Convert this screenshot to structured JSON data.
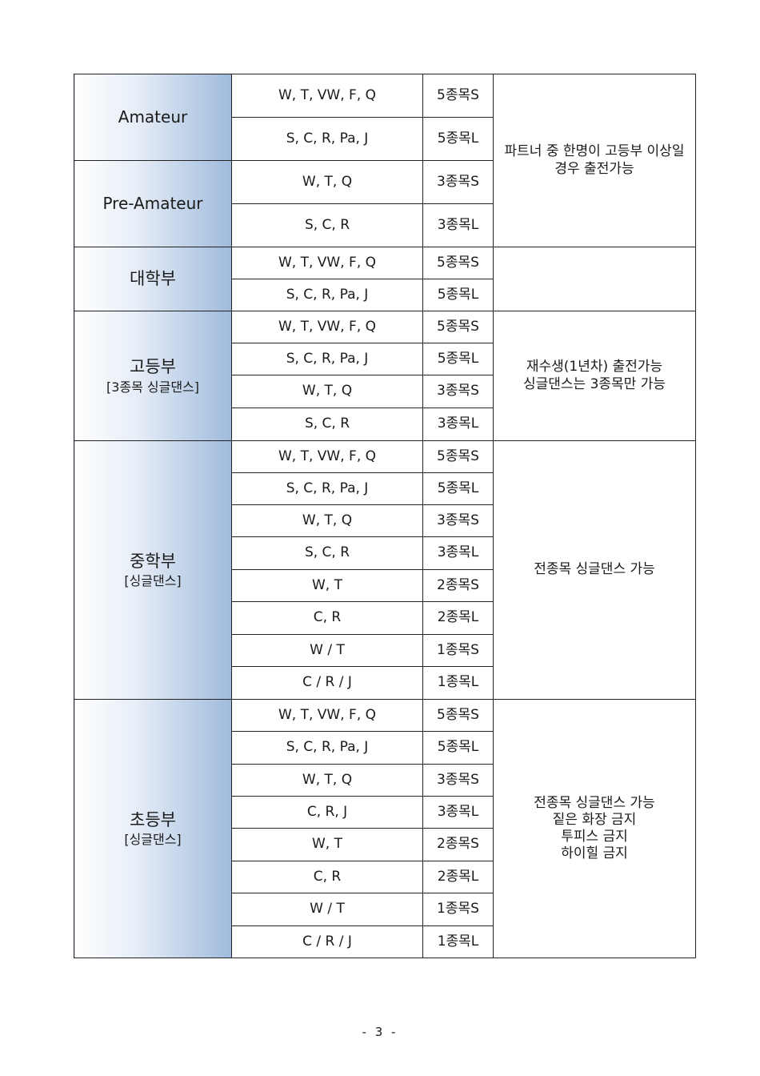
{
  "groups": [
    {
      "name": "Amateur",
      "rows": [
        {
          "dances": "W, T, VW, F, Q",
          "event": "5종목S"
        },
        {
          "dances": "S, C, R, Pa, J",
          "event": "5종목L"
        }
      ]
    },
    {
      "name": "Pre-Amateur",
      "rows": [
        {
          "dances": "W, T, Q",
          "event": "3종목S"
        },
        {
          "dances": "S, C, R",
          "event": "3종목L"
        }
      ]
    },
    {
      "name": "대학부",
      "rows": [
        {
          "dances": "W, T, VW, F, Q",
          "event": "5종목S"
        },
        {
          "dances": "S, C, R, Pa, J",
          "event": "5종목L"
        }
      ]
    },
    {
      "name": "고등부",
      "sub": "[3종목 싱글댄스]",
      "rows": [
        {
          "dances": "W, T, VW, F, Q",
          "event": "5종목S"
        },
        {
          "dances": "S, C, R, Pa, J",
          "event": "5종목L"
        },
        {
          "dances": "W, T, Q",
          "event": "3종목S"
        },
        {
          "dances": "S, C, R",
          "event": "3종목L"
        }
      ]
    },
    {
      "name": "중학부",
      "sub": "[싱글댄스]",
      "rows": [
        {
          "dances": "W, T, VW, F, Q",
          "event": "5종목S"
        },
        {
          "dances": "S, C, R, Pa, J",
          "event": "5종목L"
        },
        {
          "dances": "W, T, Q",
          "event": "3종목S"
        },
        {
          "dances": "S, C, R",
          "event": "3종목L"
        },
        {
          "dances": "W, T",
          "event": "2종목S"
        },
        {
          "dances": "C, R",
          "event": "2종목L"
        },
        {
          "dances": "W / T",
          "event": "1종목S"
        },
        {
          "dances": "C / R / J",
          "event": "1종목L"
        }
      ]
    },
    {
      "name": "초등부",
      "sub": "[싱글댄스]",
      "rows": [
        {
          "dances": "W, T, VW, F, Q",
          "event": "5종목S"
        },
        {
          "dances": "S, C, R, Pa, J",
          "event": "5종목L"
        },
        {
          "dances": "W, T, Q",
          "event": "3종목S"
        },
        {
          "dances": "C, R, J",
          "event": "3종목L"
        },
        {
          "dances": "W, T",
          "event": "2종목S"
        },
        {
          "dances": "C, R",
          "event": "2종목L"
        },
        {
          "dances": "W / T",
          "event": "1종목S"
        },
        {
          "dances": "C / R / J",
          "event": "1종목L"
        }
      ]
    }
  ],
  "notes": {
    "amateur": [
      "파트너 중 한명이 고등부 이상일",
      "경우 출전가능"
    ],
    "university": [],
    "highschool": [
      "재수생(1년차) 출전가능",
      "싱글댄스는 3종목만 가능"
    ],
    "middle": [
      "전종목 싱글댄스 가능"
    ],
    "elementary": [
      "전종목 싱글댄스 가능",
      "짙은 화장 금지",
      "투피스 금지",
      "하이힐 금지"
    ]
  },
  "page_number": "- 3 -"
}
